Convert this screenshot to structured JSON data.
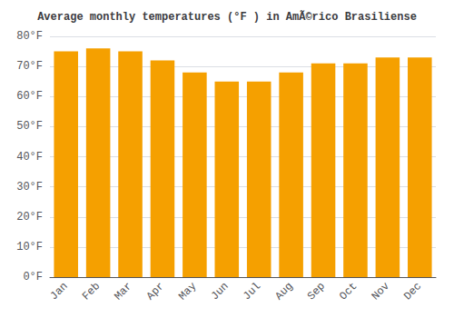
{
  "chart_data": {
    "type": "bar",
    "title": "Average monthly temperatures (°F ) in AmÃ©rico Brasiliense",
    "categories": [
      "Jan",
      "Feb",
      "Mar",
      "Apr",
      "May",
      "Jun",
      "Jul",
      "Aug",
      "Sep",
      "Oct",
      "Nov",
      "Dec"
    ],
    "values": [
      75,
      76,
      75,
      72,
      68,
      65,
      65,
      68,
      71,
      71,
      73,
      73
    ],
    "color": "#F5A000",
    "ylim": [
      0,
      80
    ],
    "yticks": [
      {
        "value": 0,
        "label": "0°F"
      },
      {
        "value": 10,
        "label": "10°F"
      },
      {
        "value": 20,
        "label": "20°F"
      },
      {
        "value": 30,
        "label": "30°F"
      },
      {
        "value": 40,
        "label": "40°F"
      },
      {
        "value": 50,
        "label": "50°F"
      },
      {
        "value": 60,
        "label": "60°F"
      },
      {
        "value": 70,
        "label": "70°F"
      },
      {
        "value": 80,
        "label": "80°F"
      }
    ],
    "grid": true
  }
}
